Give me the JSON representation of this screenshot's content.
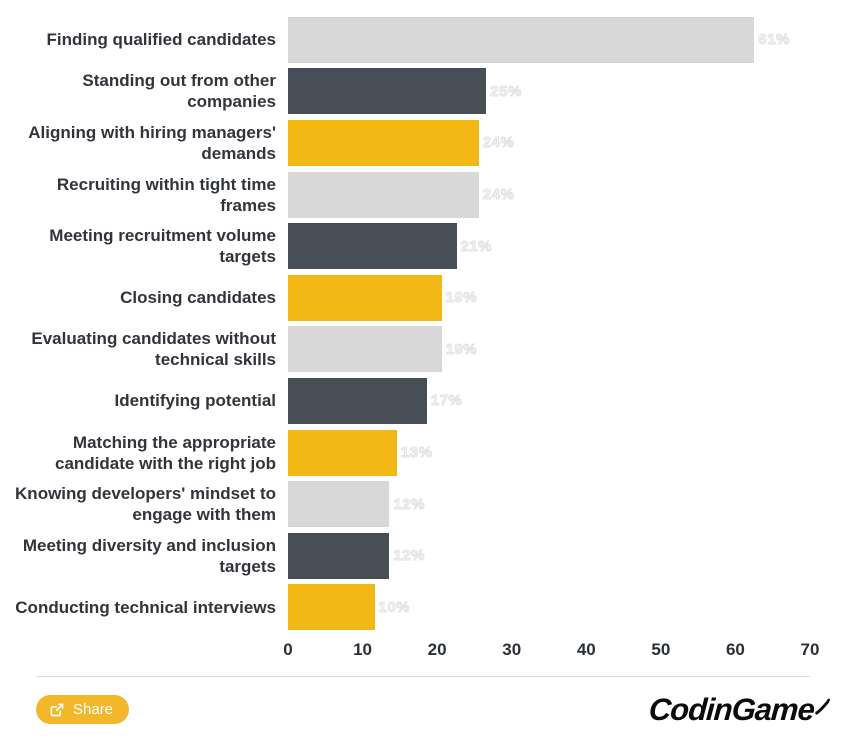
{
  "chart_data": {
    "type": "bar",
    "orientation": "horizontal",
    "title": "",
    "categories": [
      "Finding qualified candidates",
      "Standing out from other companies",
      "Aligning with hiring managers' demands",
      "Recruiting within tight time frames",
      "Meeting recruitment volume targets",
      "Closing candidates",
      "Evaluating candidates without technical skills",
      "Identifying potential",
      "Matching the appropriate candidate with the right job",
      "Knowing developers' mindset to engage with them",
      "Meeting diversity and inclusion targets",
      "Conducting technical interviews"
    ],
    "values": [
      61,
      25,
      24,
      24,
      21,
      19,
      19,
      17,
      13,
      12,
      12,
      10
    ],
    "value_labels": [
      "61%",
      "25%",
      "24%",
      "24%",
      "21%",
      "19%",
      "19%",
      "17%",
      "13%",
      "12%",
      "12%",
      "10%"
    ],
    "bar_colors": [
      "#D8D8D8",
      "#474E58",
      "#F2B816"
    ],
    "x_ticks": [
      0,
      10,
      20,
      30,
      40,
      50,
      60,
      70
    ],
    "xlim": [
      0,
      70
    ],
    "grid": false,
    "legend": false,
    "value_label_color": "#ECECEC",
    "category_label_color": "#31353B",
    "axis_label_color": "#2B3036"
  },
  "footer": {
    "share_label": "Share",
    "logo_text": "CodinGame"
  }
}
